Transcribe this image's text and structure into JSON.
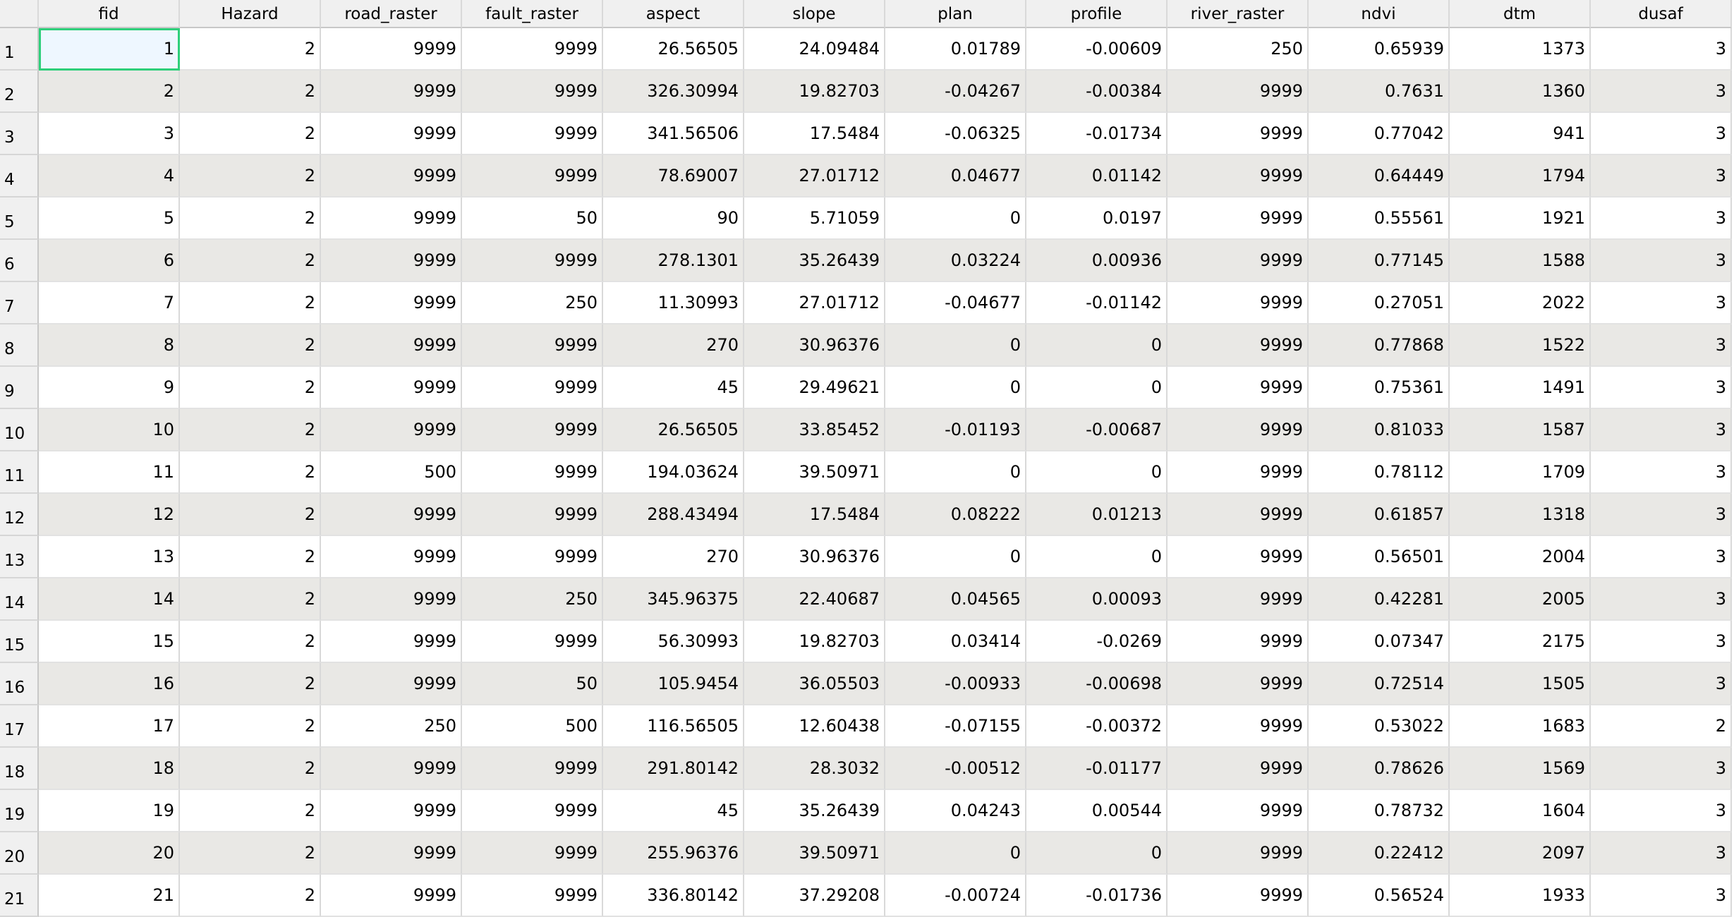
{
  "table": {
    "columns": [
      "fid",
      "Hazard",
      "road_raster",
      "fault_raster",
      "aspect",
      "slope",
      "plan",
      "profile",
      "river_raster",
      "ndvi",
      "dtm",
      "dusaf"
    ],
    "rows": [
      [
        "1",
        "2",
        "9999",
        "9999",
        "26.56505",
        "24.09484",
        "0.01789",
        "-0.00609",
        "250",
        "0.65939",
        "1373",
        "3"
      ],
      [
        "2",
        "2",
        "9999",
        "9999",
        "326.30994",
        "19.82703",
        "-0.04267",
        "-0.00384",
        "9999",
        "0.7631",
        "1360",
        "3"
      ],
      [
        "3",
        "2",
        "9999",
        "9999",
        "341.56506",
        "17.5484",
        "-0.06325",
        "-0.01734",
        "9999",
        "0.77042",
        "941",
        "3"
      ],
      [
        "4",
        "2",
        "9999",
        "9999",
        "78.69007",
        "27.01712",
        "0.04677",
        "0.01142",
        "9999",
        "0.64449",
        "1794",
        "3"
      ],
      [
        "5",
        "2",
        "9999",
        "50",
        "90",
        "5.71059",
        "0",
        "0.0197",
        "9999",
        "0.55561",
        "1921",
        "3"
      ],
      [
        "6",
        "2",
        "9999",
        "9999",
        "278.1301",
        "35.26439",
        "0.03224",
        "0.00936",
        "9999",
        "0.77145",
        "1588",
        "3"
      ],
      [
        "7",
        "2",
        "9999",
        "250",
        "11.30993",
        "27.01712",
        "-0.04677",
        "-0.01142",
        "9999",
        "0.27051",
        "2022",
        "3"
      ],
      [
        "8",
        "2",
        "9999",
        "9999",
        "270",
        "30.96376",
        "0",
        "0",
        "9999",
        "0.77868",
        "1522",
        "3"
      ],
      [
        "9",
        "2",
        "9999",
        "9999",
        "45",
        "29.49621",
        "0",
        "0",
        "9999",
        "0.75361",
        "1491",
        "3"
      ],
      [
        "10",
        "2",
        "9999",
        "9999",
        "26.56505",
        "33.85452",
        "-0.01193",
        "-0.00687",
        "9999",
        "0.81033",
        "1587",
        "3"
      ],
      [
        "11",
        "2",
        "500",
        "9999",
        "194.03624",
        "39.50971",
        "0",
        "0",
        "9999",
        "0.78112",
        "1709",
        "3"
      ],
      [
        "12",
        "2",
        "9999",
        "9999",
        "288.43494",
        "17.5484",
        "0.08222",
        "0.01213",
        "9999",
        "0.61857",
        "1318",
        "3"
      ],
      [
        "13",
        "2",
        "9999",
        "9999",
        "270",
        "30.96376",
        "0",
        "0",
        "9999",
        "0.56501",
        "2004",
        "3"
      ],
      [
        "14",
        "2",
        "9999",
        "250",
        "345.96375",
        "22.40687",
        "0.04565",
        "0.00093",
        "9999",
        "0.42281",
        "2005",
        "3"
      ],
      [
        "15",
        "2",
        "9999",
        "9999",
        "56.30993",
        "19.82703",
        "0.03414",
        "-0.0269",
        "9999",
        "0.07347",
        "2175",
        "3"
      ],
      [
        "16",
        "2",
        "9999",
        "50",
        "105.9454",
        "36.05503",
        "-0.00933",
        "-0.00698",
        "9999",
        "0.72514",
        "1505",
        "3"
      ],
      [
        "17",
        "2",
        "250",
        "500",
        "116.56505",
        "12.60438",
        "-0.07155",
        "-0.00372",
        "9999",
        "0.53022",
        "1683",
        "2"
      ],
      [
        "18",
        "2",
        "9999",
        "9999",
        "291.80142",
        "28.3032",
        "-0.00512",
        "-0.01177",
        "9999",
        "0.78626",
        "1569",
        "3"
      ],
      [
        "19",
        "2",
        "9999",
        "9999",
        "45",
        "35.26439",
        "0.04243",
        "0.00544",
        "9999",
        "0.78732",
        "1604",
        "3"
      ],
      [
        "20",
        "2",
        "9999",
        "9999",
        "255.96376",
        "39.50971",
        "0",
        "0",
        "9999",
        "0.22412",
        "2097",
        "3"
      ],
      [
        "21",
        "2",
        "9999",
        "9999",
        "336.80142",
        "37.29208",
        "-0.00724",
        "-0.01736",
        "9999",
        "0.56524",
        "1933",
        "3"
      ]
    ]
  }
}
